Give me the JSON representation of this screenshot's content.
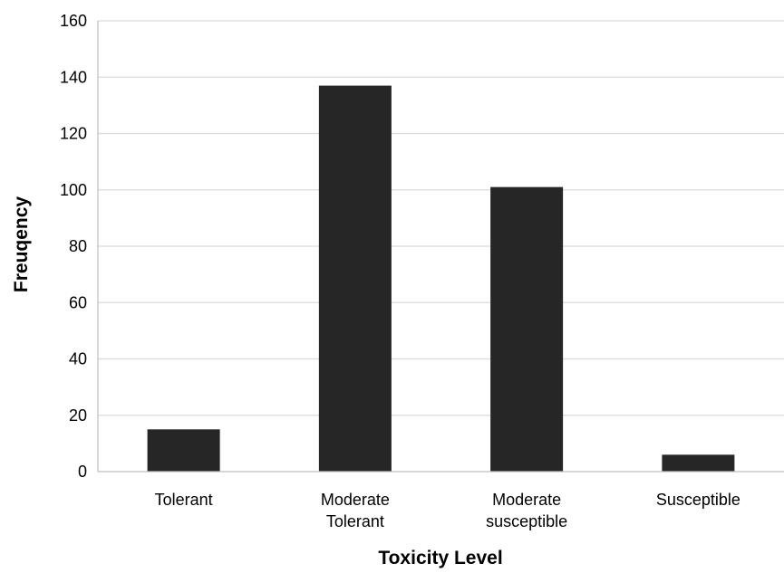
{
  "chart_data": {
    "type": "bar",
    "title": "",
    "xlabel": "Toxicity Level",
    "ylabel": "Freuqency",
    "categories": [
      [
        "Tolerant"
      ],
      [
        "Moderate",
        "Tolerant"
      ],
      [
        "Moderate",
        "susceptible"
      ],
      [
        "Susceptible"
      ]
    ],
    "values": [
      15,
      137,
      101,
      6
    ],
    "ylim": [
      0,
      160
    ],
    "yticks": [
      0,
      20,
      40,
      60,
      80,
      100,
      120,
      140,
      160
    ],
    "grid": true,
    "legend": "none",
    "bar_color": "#262626"
  }
}
